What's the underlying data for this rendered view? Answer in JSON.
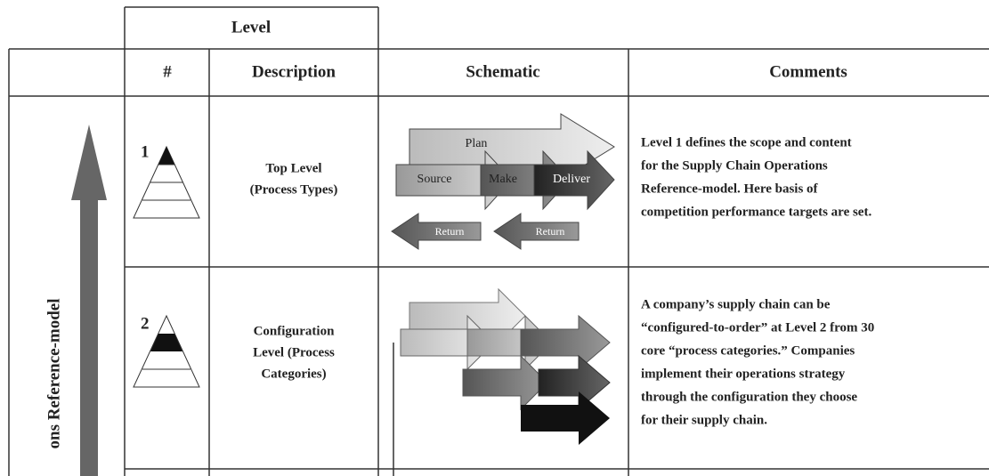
{
  "header": {
    "level": "Level",
    "number": "#",
    "description": "Description",
    "schematic": "Schematic",
    "comments": "Comments"
  },
  "side_label": "ons Reference-model",
  "rows": [
    {
      "number": "1",
      "description": [
        "Top Level",
        "(Process Types)"
      ],
      "schematic": {
        "plan": "Plan",
        "source": "Source",
        "make": "Make",
        "deliver": "Deliver",
        "return_left": "Return",
        "return_right": "Return"
      },
      "comments": [
        "Level 1 defines the scope and content",
        "for the Supply Chain Operations",
        "Reference-model. Here basis of",
        "competition performance targets are set."
      ]
    },
    {
      "number": "2",
      "description": [
        "Configuration",
        "Level (Process",
        "Categories)"
      ],
      "comments": [
        "A company’s supply chain can be",
        "“configured-to-order” at Level 2 from 30",
        "core “process categories.” Companies",
        "implement their operations strategy",
        "through the configuration they choose",
        "for their supply chain."
      ]
    }
  ]
}
